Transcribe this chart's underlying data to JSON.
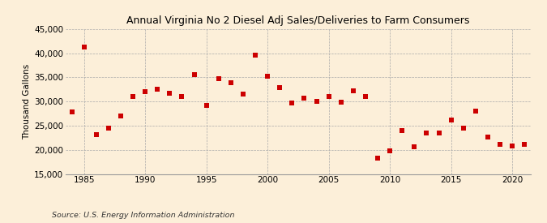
{
  "title": "Annual Virginia No 2 Diesel Adj Sales/Deliveries to Farm Consumers",
  "ylabel": "Thousand Gallons",
  "source": "Source: U.S. Energy Information Administration",
  "background_color": "#fcefd9",
  "plot_bg_color": "#fcefd9",
  "marker_color": "#cc0000",
  "marker": "s",
  "markersize": 4,
  "ylim": [
    15000,
    45000
  ],
  "yticks": [
    15000,
    20000,
    25000,
    30000,
    35000,
    40000,
    45000
  ],
  "xlim": [
    1983.5,
    2021.5
  ],
  "xticks": [
    1985,
    1990,
    1995,
    2000,
    2005,
    2010,
    2015,
    2020
  ],
  "years": [
    1984,
    1985,
    1986,
    1987,
    1988,
    1989,
    1990,
    1991,
    1992,
    1993,
    1994,
    1995,
    1996,
    1997,
    1998,
    1999,
    2000,
    2001,
    2002,
    2003,
    2004,
    2005,
    2006,
    2007,
    2008,
    2009,
    2010,
    2011,
    2012,
    2013,
    2014,
    2015,
    2016,
    2017,
    2018,
    2019,
    2020,
    2021
  ],
  "values": [
    27800,
    41300,
    23100,
    24500,
    27000,
    31100,
    32000,
    32500,
    31700,
    31100,
    35500,
    29200,
    34700,
    33900,
    31600,
    39600,
    35300,
    32800,
    29700,
    30700,
    30100,
    31100,
    29900,
    32200,
    31100,
    18200,
    19800,
    24000,
    20600,
    23400,
    23400,
    26100,
    24500,
    28000,
    22600,
    21100,
    20800,
    21100
  ],
  "title_fontsize": 9.0,
  "axis_fontsize": 7.5,
  "source_fontsize": 6.8
}
